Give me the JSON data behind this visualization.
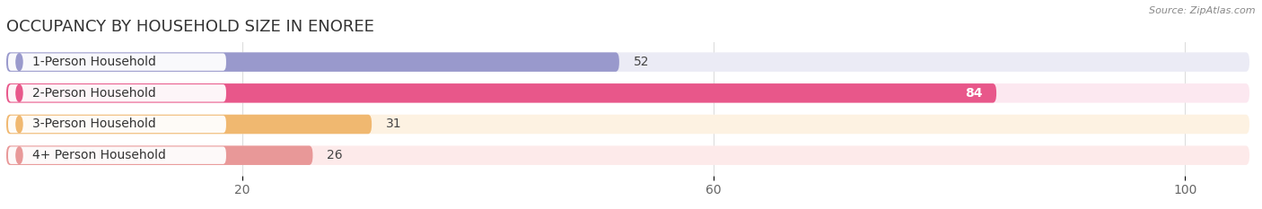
{
  "title": "OCCUPANCY BY HOUSEHOLD SIZE IN ENOREE",
  "source": "Source: ZipAtlas.com",
  "categories": [
    "1-Person Household",
    "2-Person Household",
    "3-Person Household",
    "4+ Person Household"
  ],
  "values": [
    52,
    84,
    31,
    26
  ],
  "bar_colors": [
    "#9999cc",
    "#e8578a",
    "#f0b870",
    "#e89898"
  ],
  "bar_bg_colors": [
    "#ebebf5",
    "#fce8f0",
    "#fdf2e2",
    "#fdeaea"
  ],
  "xlim_max": 106,
  "xticks": [
    20,
    60,
    100
  ],
  "background_color": "#ffffff",
  "bar_height": 0.62,
  "title_fontsize": 13,
  "label_fontsize": 10,
  "tick_fontsize": 10,
  "value_fontsize": 10
}
